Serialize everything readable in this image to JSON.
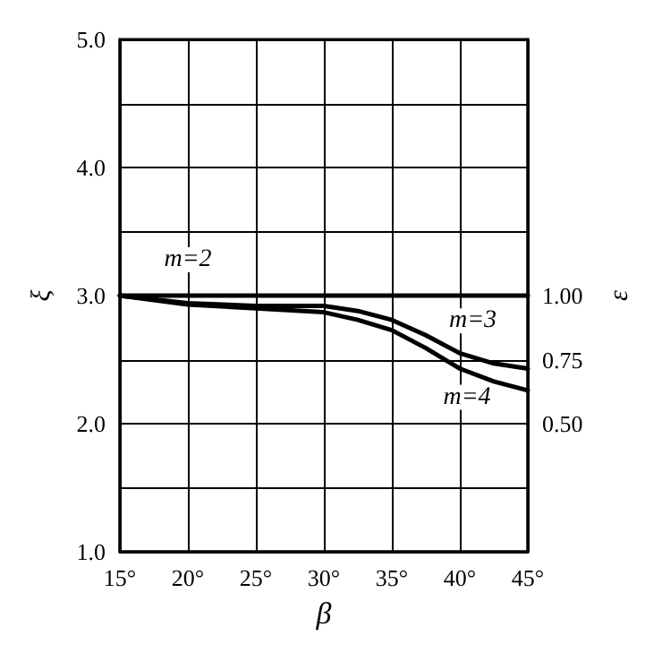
{
  "chart_data": {
    "type": "line",
    "xlabel": "β",
    "ylabel": "ξ",
    "y2label": "ε",
    "x": [
      15,
      20,
      25,
      30,
      32.5,
      35,
      37.5,
      40,
      42.5,
      45
    ],
    "series": [
      {
        "name": "m=2",
        "color": "#000000",
        "values": [
          3,
          3,
          3,
          3,
          3,
          3,
          3,
          3,
          3,
          3
        ]
      },
      {
        "name": "m=3",
        "color": "#000000",
        "values": [
          3,
          2.94,
          2.92,
          2.92,
          2.88,
          2.81,
          2.69,
          2.55,
          2.47,
          2.43
        ]
      },
      {
        "name": "m=4",
        "color": "#000000",
        "values": [
          3,
          2.93,
          2.9,
          2.87,
          2.81,
          2.73,
          2.59,
          2.43,
          2.33,
          2.26
        ]
      }
    ],
    "xlim": [
      15,
      45
    ],
    "xticks": [
      {
        "value": 15,
        "label": "15°"
      },
      {
        "value": 20,
        "label": "20°"
      },
      {
        "value": 25,
        "label": "25°"
      },
      {
        "value": 30,
        "label": "30°"
      },
      {
        "value": 35,
        "label": "35°"
      },
      {
        "value": 40,
        "label": "40°"
      },
      {
        "value": 45,
        "label": "45°"
      }
    ],
    "ylim": [
      1,
      5
    ],
    "yticks": [
      {
        "value": 1,
        "label": "1.0"
      },
      {
        "value": 1.5,
        "label": null
      },
      {
        "value": 2,
        "label": "2.0"
      },
      {
        "value": 2.5,
        "label": null
      },
      {
        "value": 3,
        "label": "3.0"
      },
      {
        "value": 3.5,
        "label": null
      },
      {
        "value": 4,
        "label": "4.0"
      },
      {
        "value": 4.5,
        "label": null
      },
      {
        "value": 5,
        "label": "5.0"
      }
    ],
    "y2lim": [
      0,
      2
    ],
    "y2ticks": [
      {
        "value": 0.5,
        "label": "0.50"
      },
      {
        "value": 0.75,
        "label": "0.75"
      },
      {
        "value": 1,
        "label": "1.00"
      }
    ],
    "grid": true,
    "legend": false,
    "marker": "none",
    "line_style": "solid"
  }
}
